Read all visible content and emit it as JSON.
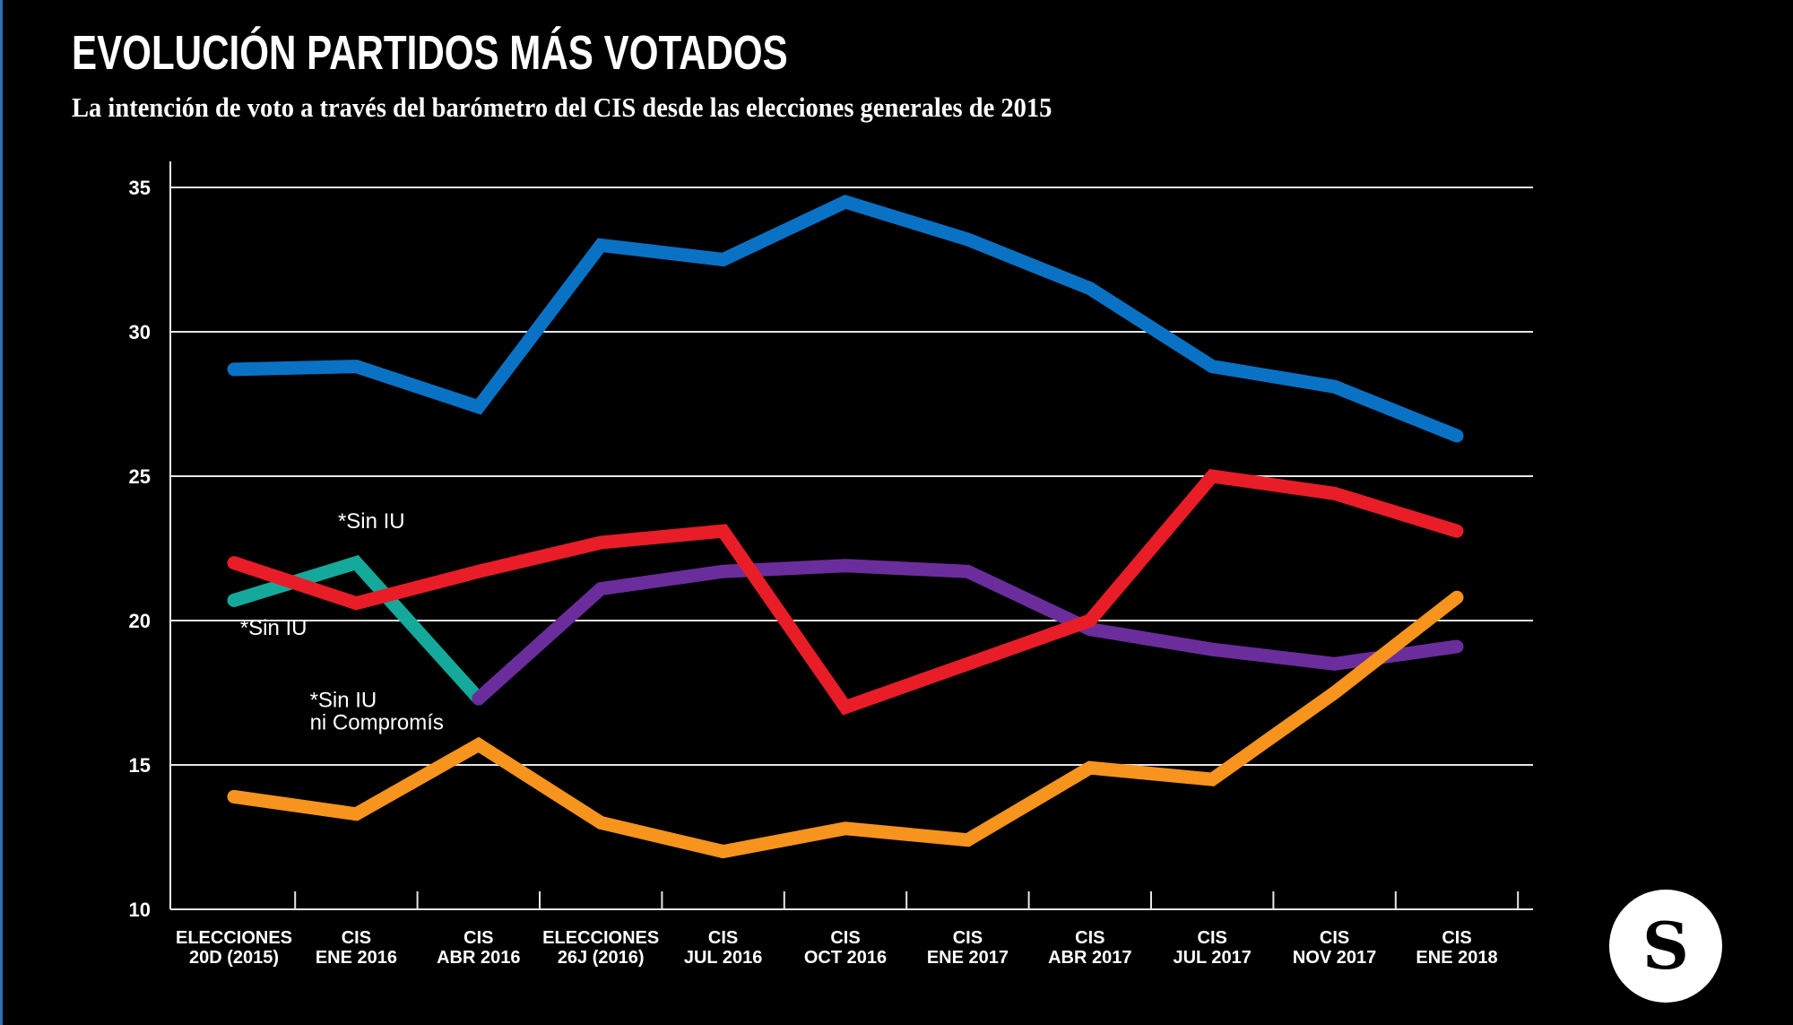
{
  "header": {
    "title": "EVOLUCIÓN PARTIDOS MÁS VOTADOS",
    "subtitle": "La intención de voto a través del barómetro del CIS desde las elecciones generales de 2015"
  },
  "logo": {
    "letter": "S"
  },
  "chart_data": {
    "type": "line",
    "title": "EVOLUCIÓN PARTIDOS MÁS VOTADOS",
    "subtitle": "La intención de voto a través del barómetro del CIS desde las elecciones generales de 2015",
    "xlabel": "",
    "ylabel": "",
    "ylim": [
      10,
      35
    ],
    "yticks": [
      10,
      15,
      20,
      25,
      30,
      35
    ],
    "grid": true,
    "legend": "none",
    "categories": [
      [
        "ELECCIONES",
        "20D (2015)"
      ],
      [
        "CIS",
        "ENE 2016"
      ],
      [
        "CIS",
        "ABR 2016"
      ],
      [
        "ELECCIONES",
        "26J (2016)"
      ],
      [
        "CIS",
        "JUL 2016"
      ],
      [
        "CIS",
        "OCT 2016"
      ],
      [
        "CIS",
        "ENE 2017"
      ],
      [
        "CIS",
        "ABR 2017"
      ],
      [
        "CIS",
        "JUL 2017"
      ],
      [
        "CIS",
        "NOV 2017"
      ],
      [
        "CIS",
        "ENE 2018"
      ]
    ],
    "series": [
      {
        "name": "blue",
        "color": "#0a72c4",
        "start": 0,
        "values": [
          28.7,
          28.8,
          27.4,
          33.0,
          32.5,
          34.5,
          33.2,
          31.5,
          28.8,
          28.1,
          26.4
        ]
      },
      {
        "name": "teal",
        "color": "#14a99a",
        "start": 0,
        "values": [
          20.7,
          22.0,
          17.3
        ]
      },
      {
        "name": "purple",
        "color": "#6b2d9b",
        "start": 2,
        "values": [
          17.3,
          21.1,
          21.7,
          21.9,
          21.7,
          19.7,
          19.0,
          18.5,
          19.1
        ]
      },
      {
        "name": "red",
        "color": "#e81d27",
        "start": 0,
        "values": [
          22.0,
          20.6,
          21.7,
          22.7,
          23.1,
          17.0,
          18.5,
          20.0,
          25.0,
          24.4,
          23.1
        ]
      },
      {
        "name": "orange",
        "color": "#f7941d",
        "start": 0,
        "values": [
          13.9,
          13.3,
          15.7,
          13.0,
          12.0,
          12.8,
          12.4,
          14.9,
          14.5,
          17.5,
          20.8
        ]
      }
    ],
    "annotations": [
      {
        "text": [
          "*Sin IU"
        ],
        "x_index": 1,
        "y": 23.2,
        "dx": -0.15
      },
      {
        "text": [
          "*Sin IU"
        ],
        "x_index": 0,
        "y": 19.5,
        "dx": 0.05
      },
      {
        "text": [
          "*Sin IU",
          "ni Compromís"
        ],
        "x_index": 1,
        "y": 17.0,
        "dx": -0.38
      }
    ]
  }
}
